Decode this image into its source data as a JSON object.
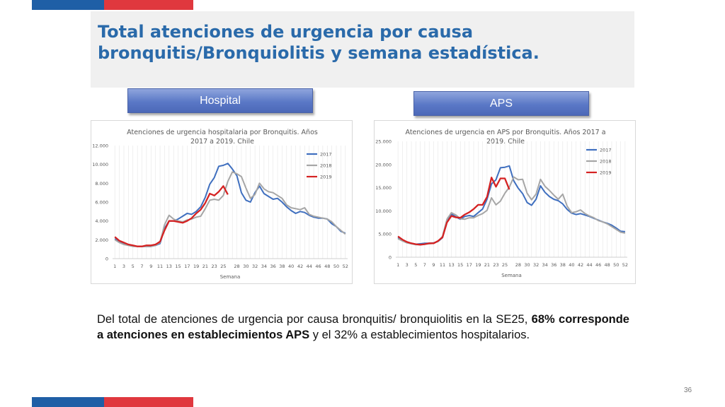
{
  "slide": {
    "title": "Total atenciones de urgencia por causa bronquitis/Bronquiolitis y semana estadística.",
    "page_number": "36",
    "colors": {
      "accent_blue": "#1f5fa6",
      "accent_red": "#e0383e",
      "title_color": "#2a6aaa"
    }
  },
  "labels": {
    "hospital": "Hospital",
    "aps": "APS"
  },
  "text": {
    "part1": "Del total de atenciones de urgencia por causa bronquitis/ bronquiolitis en la SE25, ",
    "bold": "68% corresponde a atenciones en establecimientos APS",
    "part2": " y el 32% a establecimientos hospitalarios."
  },
  "chart_data": [
    {
      "type": "line",
      "title": "Atenciones de urgencia hospitalaria por Bronquitis. Años 2017 a 2019. Chile",
      "xlabel": "Semana",
      "ylabel": "",
      "ylim": [
        0,
        12000
      ],
      "yticks": [
        "0",
        "2.000",
        "4.000",
        "6.000",
        "8.000",
        "10.000",
        "12.000"
      ],
      "x_tick_labels": [
        "1",
        "3",
        "5",
        "7",
        "9",
        "11",
        "13",
        "15",
        "17",
        "19",
        "21",
        "23",
        "25",
        "28",
        "30",
        "32",
        "34",
        "36",
        "38",
        "40",
        "42",
        "44",
        "46",
        "48",
        "50",
        "52"
      ],
      "legend_position": "top-right",
      "grid": true,
      "series": [
        {
          "name": "2017",
          "color": "#3f6fbf",
          "values": [
            2100,
            1800,
            1600,
            1500,
            1400,
            1300,
            1300,
            1300,
            1300,
            1400,
            1600,
            3200,
            4000,
            4000,
            4200,
            4500,
            4800,
            4700,
            5000,
            5500,
            6500,
            7900,
            8600,
            9800,
            9900,
            10100,
            9500,
            8800,
            7000,
            6200,
            6000,
            7000,
            7700,
            6900,
            6600,
            6300,
            6400,
            6000,
            5500,
            5100,
            4800,
            5000,
            4900,
            4600,
            4400,
            4300,
            4300,
            4200,
            3700,
            3400,
            2900,
            2700
          ]
        },
        {
          "name": "2018",
          "color": "#a6a6a6",
          "values": [
            2000,
            1700,
            1500,
            1400,
            1300,
            1300,
            1300,
            1300,
            1300,
            1400,
            1700,
            3600,
            4600,
            4200,
            4000,
            3900,
            4100,
            4200,
            4400,
            4500,
            5300,
            6200,
            6300,
            6200,
            6700,
            8200,
            9200,
            9000,
            8700,
            7500,
            6400,
            6800,
            8000,
            7400,
            7100,
            7000,
            6700,
            6400,
            5700,
            5400,
            5300,
            5200,
            5400,
            4700,
            4500,
            4400,
            4300,
            4200,
            3900,
            3400,
            3000,
            2600
          ]
        },
        {
          "name": "2019",
          "color": "#d52222",
          "values": [
            2300,
            1900,
            1700,
            1500,
            1400,
            1300,
            1300,
            1400,
            1400,
            1500,
            1800,
            3000,
            4000,
            4000,
            3900,
            3800,
            4000,
            4300,
            4800,
            5200,
            5900,
            6900,
            6700,
            7100,
            7700,
            6800
          ]
        }
      ]
    },
    {
      "type": "line",
      "title": "Atenciones de urgencia en APS por Bronquitis. Años 2017 a 2019. Chile",
      "xlabel": "Semana",
      "ylabel": "",
      "ylim": [
        0,
        25000
      ],
      "yticks": [
        "0",
        "5.000",
        "10.000",
        "15.000",
        "20.000",
        "25.000"
      ],
      "x_tick_labels": [
        "1",
        "3",
        "5",
        "7",
        "9",
        "11",
        "13",
        "15",
        "17",
        "19",
        "21",
        "23",
        "25",
        "28",
        "30",
        "32",
        "34",
        "36",
        "38",
        "40",
        "42",
        "44",
        "46",
        "48",
        "50",
        "52"
      ],
      "legend_position": "top-right",
      "grid": true,
      "series": [
        {
          "name": "2017",
          "color": "#3f6fbf",
          "values": [
            4200,
            3600,
            3200,
            3000,
            2800,
            2900,
            3000,
            3000,
            3100,
            3400,
            4200,
            7600,
            9300,
            8700,
            8200,
            8800,
            9000,
            8800,
            9600,
            10400,
            12500,
            15800,
            16700,
            19300,
            19400,
            19700,
            16500,
            14900,
            13700,
            11800,
            11200,
            12500,
            15400,
            14000,
            13100,
            12500,
            12200,
            11500,
            10300,
            9500,
            9200,
            9400,
            9100,
            8800,
            8400,
            8000,
            7600,
            7300,
            6900,
            6300,
            5600,
            5500
          ]
        },
        {
          "name": "2018",
          "color": "#a6a6a6",
          "values": [
            4000,
            3500,
            3100,
            2900,
            2700,
            2700,
            2800,
            2900,
            3000,
            3400,
            4500,
            8200,
            9600,
            9100,
            8300,
            8200,
            8500,
            8500,
            9000,
            9400,
            10100,
            12800,
            11300,
            12100,
            13800,
            15100,
            17300,
            16700,
            16800,
            13800,
            12400,
            13600,
            16800,
            15300,
            14400,
            13400,
            12500,
            13600,
            11000,
            9600,
            9800,
            10200,
            9400,
            8900,
            8500,
            7900,
            7600,
            7200,
            6600,
            6000,
            5400,
            5200
          ]
        },
        {
          "name": "2019",
          "color": "#d52222",
          "values": [
            4500,
            3800,
            3300,
            3000,
            2800,
            2700,
            2800,
            3000,
            3000,
            3500,
            4300,
            7500,
            8900,
            8600,
            8500,
            9200,
            9700,
            10400,
            11300,
            11300,
            13000,
            17200,
            15200,
            17000,
            17000,
            14600
          ]
        }
      ]
    }
  ]
}
